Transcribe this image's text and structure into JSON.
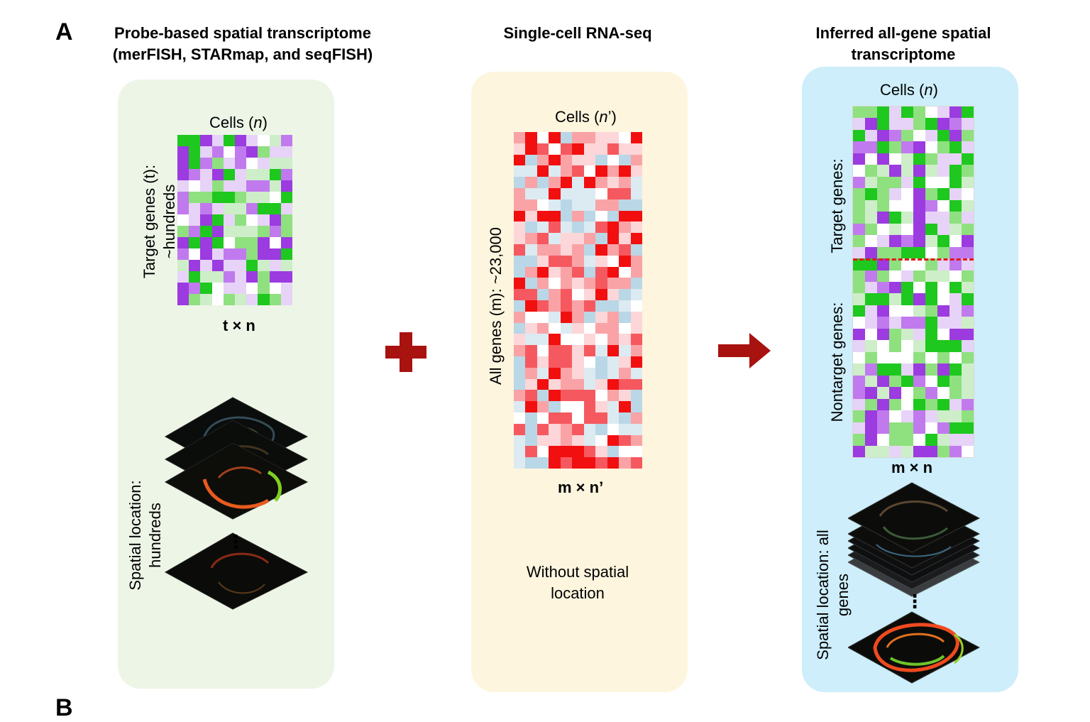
{
  "panel_labels": {
    "a": "A",
    "b": "B"
  },
  "columns": {
    "probe": {
      "title": "Probe-based spatial transcriptome (merFISH, STARmap, and seqFISH)",
      "cells_label_prefix": "Cells (",
      "cells_label_var": "n",
      "cells_label_suffix": ")",
      "rows_label": "Target genes (t): ~hundreds",
      "dims_label": "t × n",
      "spatial_label": "Spatial location: hundreds",
      "ellipsis": "⋮",
      "bg_color": "#edf5e7",
      "heatmap": {
        "rows": 15,
        "cols": 10,
        "palette": [
          "#9b3be0",
          "#c07aee",
          "#e6d3f7",
          "#ffffff",
          "#cdeec8",
          "#8fe07f",
          "#1ec81e"
        ]
      }
    },
    "scrna": {
      "title": "Single-cell RNA-seq",
      "cells_label_prefix": "Cells (",
      "cells_label_var": "n",
      "cells_label_suffix": "’)",
      "rows_label": "All genes (m):  ~23,000",
      "dims_label": "m × n’",
      "note": "Without spatial location",
      "bg_color": "#fdf5de",
      "heatmap": {
        "rows": 30,
        "cols": 11,
        "palette": [
          "#f20f0f",
          "#f5595f",
          "#f9a3a6",
          "#fcd6d8",
          "#ffffff",
          "#dceaf2",
          "#b9d7e6"
        ]
      }
    },
    "inferred": {
      "title": "Inferred all-gene spatial transcriptome",
      "cells_label_prefix": "Cells (",
      "cells_label_var": "n",
      "cells_label_suffix": ")",
      "target_label": "Target genes:",
      "nontarget_label": "Nontarget genes:",
      "dims_label": "m × n",
      "spatial_label": "Spatial location: all genes",
      "ellipsis": "⋮",
      "bg_color": "#cdeefa",
      "heatmap": {
        "rows": 30,
        "cols": 10,
        "palette": [
          "#9b3be0",
          "#c07aee",
          "#e6d3f7",
          "#ffffff",
          "#cdeec8",
          "#8fe07f",
          "#1ec81e"
        ]
      },
      "divider_color": "#e21818"
    }
  },
  "connectors": {
    "plus_color": "#a8120f",
    "arrow_color": "#a8120f"
  }
}
